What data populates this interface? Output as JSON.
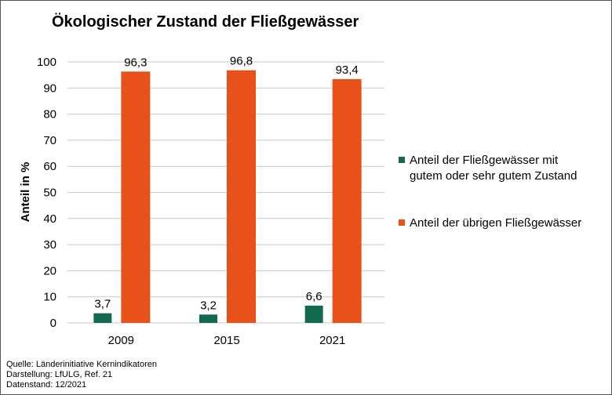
{
  "chart_data": {
    "type": "bar",
    "title": "Ökologischer Zustand der Fließgewässer",
    "xlabel": "",
    "ylabel": "Anteil in %",
    "ylim": [
      0,
      100
    ],
    "yticks": [
      "0",
      "10",
      "20",
      "30",
      "40",
      "50",
      "60",
      "70",
      "80",
      "90",
      "100"
    ],
    "grid": true,
    "legend_position": "right",
    "categories": [
      "2009",
      "2015",
      "2021"
    ],
    "series": [
      {
        "name": "Anteil der Fließgewässer mit gutem oder sehr gutem Zustand",
        "values": [
          3.7,
          3.2,
          6.6
        ],
        "labels": [
          "3,7",
          "3,2",
          "6,6"
        ],
        "color": "#12694f"
      },
      {
        "name": "Anteil der übrigen Fließgewässer",
        "values": [
          96.3,
          96.8,
          93.4
        ],
        "labels": [
          "96,3",
          "96,8",
          "93,4"
        ],
        "color": "#e8521a"
      }
    ]
  },
  "legend": {
    "item0_line1": "Anteil der Fließgewässer mit",
    "item0_line2": "gutem oder sehr gutem Zustand",
    "item1": "Anteil der übrigen Fließgewässer"
  },
  "source": {
    "line1": "Quelle:  Länderinitiative  Kernindikatoren",
    "line2": "Darstellung:  LfULG,  Ref. 21",
    "line3": "Datenstand:  12/2021"
  }
}
